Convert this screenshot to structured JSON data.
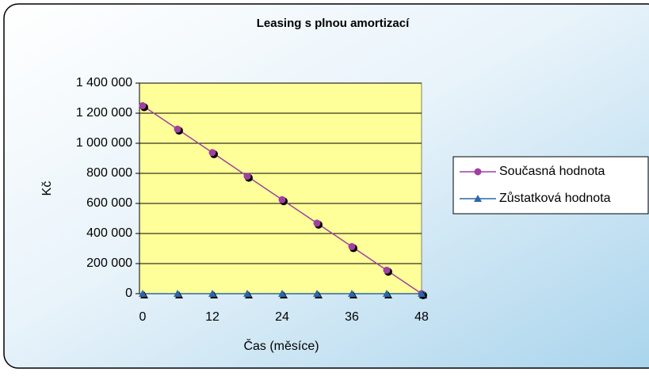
{
  "chart_data": {
    "type": "line",
    "title": "Leasing s plnou amortizací",
    "x_label": "Čas (měsíce)",
    "y_label": "Kč",
    "x": [
      0,
      6,
      12,
      18,
      24,
      30,
      36,
      42,
      48
    ],
    "series": [
      {
        "name": "Současná hodnota",
        "color": "#a040a0",
        "marker": "circle",
        "values": [
          1250000,
          1094000,
          938000,
          781000,
          625000,
          469000,
          313000,
          156000,
          0
        ]
      },
      {
        "name": "Zůstatková hodnota",
        "color": "#2a66aa",
        "marker": "triangle",
        "values": [
          0,
          0,
          0,
          0,
          0,
          0,
          0,
          0,
          0
        ]
      }
    ],
    "xlim": [
      0,
      48
    ],
    "xticks": [
      0,
      12,
      24,
      36,
      48
    ],
    "ylim": [
      0,
      1400000
    ],
    "yticks": [
      0,
      {
        "value": 200000,
        "label": "200 000"
      },
      {
        "value": 400000,
        "label": "400 000"
      },
      {
        "value": 600000,
        "label": "600 000"
      },
      {
        "value": 800000,
        "label": "800 000"
      },
      {
        "value": 1000000,
        "label": "1 000 000"
      },
      {
        "value": 1200000,
        "label": "1 200 000"
      },
      {
        "value": 1400000,
        "label": "1 400 000"
      }
    ],
    "grid": true,
    "legend": "right",
    "plot_background": "#ffff99"
  }
}
